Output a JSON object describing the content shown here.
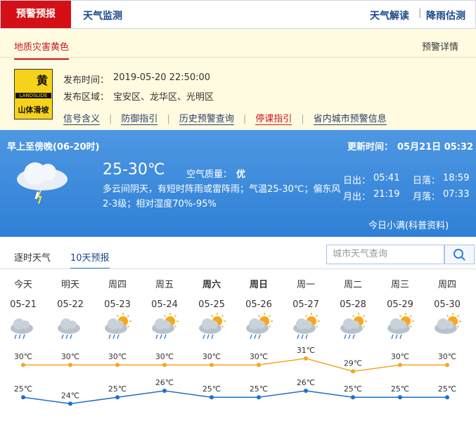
{
  "tabs": {
    "active": "预警预报",
    "other": "天气监测",
    "right": [
      "天气解读",
      "降雨估测"
    ]
  },
  "warning": {
    "title": "地质灾害黄色",
    "detail": "预警详情",
    "icon_top": "黄",
    "icon_en": "LANDSLIDE",
    "icon_bottom": "山体滑坡",
    "time_label": "发布时间：",
    "time": "2019-05-20 22:50:00",
    "area_label": "发布区域：",
    "area": "宝安区、龙华区、光明区",
    "links": [
      "信号含义",
      "防御指引",
      "历史预警查询",
      "停课指引",
      "省内城市预警信息"
    ]
  },
  "today": {
    "period": "早上至傍晚(06-20时)",
    "updated_label": "更新时间：",
    "updated": "05月21日 05:32",
    "temp": "25-30℃",
    "aqi_label": "空气质量：",
    "aqi": "优",
    "desc": "多云间阴天，有短时阵雨或雷阵雨；气温25-30℃；偏东风2-3级；相对湿度70%-95%",
    "sunrise_label": "日出：",
    "sunrise": "05:41",
    "sunset_label": "日落：",
    "sunset": "18:59",
    "moonrise_label": "月出：",
    "moonrise": "21:19",
    "moonset_label": "月落：",
    "moonset": "07:33",
    "note": "今日小满(科普资料)"
  },
  "forecast_tabs": [
    "逐时天气",
    "10天预报"
  ],
  "search_placeholder": "城市天气查询",
  "chart_data": {
    "type": "line",
    "categories": [
      "今天",
      "明天",
      "周四",
      "周五",
      "周六",
      "周日",
      "周一",
      "周二",
      "周三",
      "周四"
    ],
    "dates": [
      "05-21",
      "05-22",
      "05-23",
      "05-24",
      "05-25",
      "05-26",
      "05-27",
      "05-28",
      "05-29",
      "05-30"
    ],
    "series": [
      {
        "color": "#f5a623",
        "values": [
          30,
          30,
          30,
          30,
          30,
          30,
          31,
          29,
          30,
          30
        ],
        "value_labels": [
          "30℃",
          "30℃",
          "30℃",
          "30℃",
          "30℃",
          "30℃",
          "31℃",
          "29℃",
          "30℃",
          "30℃"
        ]
      },
      {
        "color": "#1e6fc8",
        "values": [
          25,
          24,
          25,
          26,
          25,
          25,
          26,
          25,
          25,
          25
        ],
        "value_labels": [
          "25℃",
          "24℃",
          "25℃",
          "26℃",
          "25℃",
          "25℃",
          "26℃",
          "25℃",
          "25℃",
          "25℃"
        ]
      }
    ]
  }
}
